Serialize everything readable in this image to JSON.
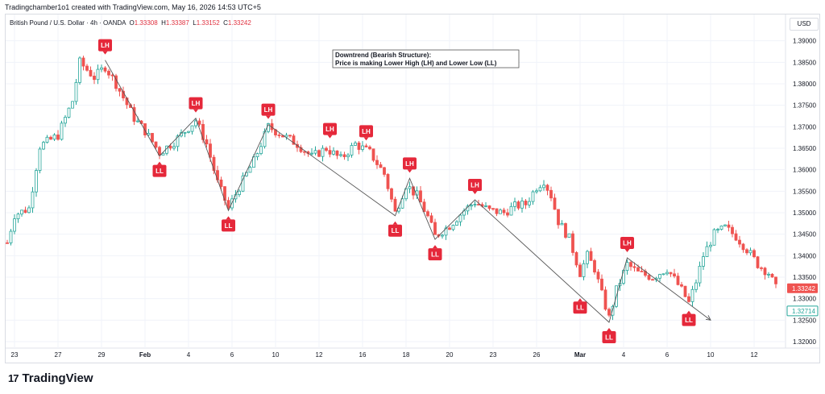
{
  "header": {
    "created_line": "Tradingchamber1o1 created with TradingView.com, May 16, 2026 14:53 UTC+5"
  },
  "legend": {
    "symbol": "British Pound / U.S. Dollar · 4h · OANDA",
    "o_label": "O",
    "o_value": "1.33308",
    "h_label": "H",
    "h_value": "1.33387",
    "l_label": "L",
    "l_value": "1.33152",
    "c_label": "C",
    "c_value": "1.33242"
  },
  "currency_button": "USD",
  "brand": {
    "logo": "17",
    "name": "TradingView"
  },
  "colors": {
    "up": "#26a69a",
    "down": "#ef5350",
    "marker": "#e5283a",
    "grid": "#f0f3fa"
  },
  "chart_data": {
    "type": "candlestick",
    "annotation": {
      "line1": "Downtrend (Bearish Structure):",
      "line2": "Price is making Lower High (LH) and Lower Low (LL)"
    },
    "y_axis_ticks": [
      "1.39000",
      "1.38500",
      "1.38000",
      "1.37500",
      "1.37000",
      "1.36500",
      "1.36000",
      "1.35500",
      "1.35000",
      "1.34500",
      "1.34000",
      "1.33500",
      "1.33000",
      "1.32500",
      "1.32000"
    ],
    "ylim": [
      1.3185,
      1.392
    ],
    "price_labels": {
      "last": "1.33242",
      "other": "1.32714"
    },
    "x_axis_ticks": [
      {
        "label": "23",
        "i": 2
      },
      {
        "label": "27",
        "i": 14
      },
      {
        "label": "29",
        "i": 26
      },
      {
        "label": "Feb",
        "i": 38
      },
      {
        "label": "4",
        "i": 50
      },
      {
        "label": "6",
        "i": 62
      },
      {
        "label": "10",
        "i": 74
      },
      {
        "label": "12",
        "i": 86
      },
      {
        "label": "16",
        "i": 98
      },
      {
        "label": "18",
        "i": 110
      },
      {
        "label": "20",
        "i": 122
      },
      {
        "label": "23",
        "i": 134
      },
      {
        "label": "26",
        "i": 146
      },
      {
        "label": "Mar",
        "i": 158
      },
      {
        "label": "4",
        "i": 170
      },
      {
        "label": "6",
        "i": 182
      },
      {
        "label": "10",
        "i": 194
      },
      {
        "label": "12",
        "i": 206
      }
    ],
    "swing_points": [
      {
        "type": "LH",
        "i": 27,
        "price": 1.3855
      },
      {
        "type": "LL",
        "i": 42,
        "price": 1.3632
      },
      {
        "type": "LH",
        "i": 52,
        "price": 1.372
      },
      {
        "type": "LL",
        "i": 61,
        "price": 1.3505
      },
      {
        "type": "LH",
        "i": 72,
        "price": 1.3705
      },
      {
        "type": "LH",
        "i": 89,
        "price": 1.366
      },
      {
        "type": "LH",
        "i": 99,
        "price": 1.3655
      },
      {
        "type": "LL",
        "i": 107,
        "price": 1.3493
      },
      {
        "type": "LH",
        "i": 111,
        "price": 1.358
      },
      {
        "type": "LL",
        "i": 118,
        "price": 1.3438
      },
      {
        "type": "LH",
        "i": 129,
        "price": 1.353
      },
      {
        "type": "LL",
        "i": 158,
        "price": 1.3314
      },
      {
        "type": "LL",
        "i": 166,
        "price": 1.3245
      },
      {
        "type": "LH",
        "i": 171,
        "price": 1.3395
      },
      {
        "type": "LL",
        "i": 188,
        "price": 1.3285
      }
    ],
    "zigzag": [
      [
        27,
        1.3855
      ],
      [
        42,
        1.3632
      ],
      [
        52,
        1.372
      ],
      [
        61,
        1.3505
      ],
      [
        72,
        1.3705
      ],
      [
        107,
        1.3493
      ],
      [
        111,
        1.358
      ],
      [
        118,
        1.3438
      ],
      [
        129,
        1.353
      ],
      [
        166,
        1.3245
      ],
      [
        171,
        1.3395
      ],
      [
        194,
        1.325
      ]
    ],
    "anchors": [
      [
        0,
        1.343
      ],
      [
        2,
        1.3495
      ],
      [
        6,
        1.351
      ],
      [
        9,
        1.3655
      ],
      [
        14,
        1.368
      ],
      [
        18,
        1.376
      ],
      [
        20,
        1.385
      ],
      [
        24,
        1.3815
      ],
      [
        27,
        1.384
      ],
      [
        30,
        1.38
      ],
      [
        35,
        1.372
      ],
      [
        38,
        1.369
      ],
      [
        42,
        1.364
      ],
      [
        46,
        1.3665
      ],
      [
        52,
        1.3715
      ],
      [
        55,
        1.366
      ],
      [
        58,
        1.357
      ],
      [
        61,
        1.351
      ],
      [
        64,
        1.356
      ],
      [
        68,
        1.362
      ],
      [
        72,
        1.37
      ],
      [
        76,
        1.368
      ],
      [
        80,
        1.366
      ],
      [
        84,
        1.363
      ],
      [
        88,
        1.365
      ],
      [
        92,
        1.3625
      ],
      [
        96,
        1.366
      ],
      [
        100,
        1.364
      ],
      [
        104,
        1.359
      ],
      [
        107,
        1.35
      ],
      [
        110,
        1.3565
      ],
      [
        113,
        1.354
      ],
      [
        116,
        1.349
      ],
      [
        118,
        1.3445
      ],
      [
        122,
        1.347
      ],
      [
        126,
        1.3505
      ],
      [
        129,
        1.3525
      ],
      [
        133,
        1.3505
      ],
      [
        137,
        1.35
      ],
      [
        140,
        1.3515
      ],
      [
        143,
        1.352
      ],
      [
        146,
        1.356
      ],
      [
        148,
        1.3575
      ],
      [
        150,
        1.354
      ],
      [
        152,
        1.348
      ],
      [
        155,
        1.344
      ],
      [
        158,
        1.336
      ],
      [
        160,
        1.34
      ],
      [
        162,
        1.337
      ],
      [
        164,
        1.331
      ],
      [
        166,
        1.3255
      ],
      [
        168,
        1.332
      ],
      [
        171,
        1.338
      ],
      [
        174,
        1.336
      ],
      [
        178,
        1.335
      ],
      [
        182,
        1.337
      ],
      [
        186,
        1.332
      ],
      [
        188,
        1.329
      ],
      [
        190,
        1.334
      ],
      [
        192,
        1.34
      ],
      [
        195,
        1.345
      ],
      [
        198,
        1.3465
      ],
      [
        201,
        1.3445
      ],
      [
        204,
        1.3415
      ],
      [
        207,
        1.338
      ],
      [
        210,
        1.336
      ],
      [
        212,
        1.3324
      ]
    ],
    "grid": true,
    "legend_position": "top-left"
  }
}
